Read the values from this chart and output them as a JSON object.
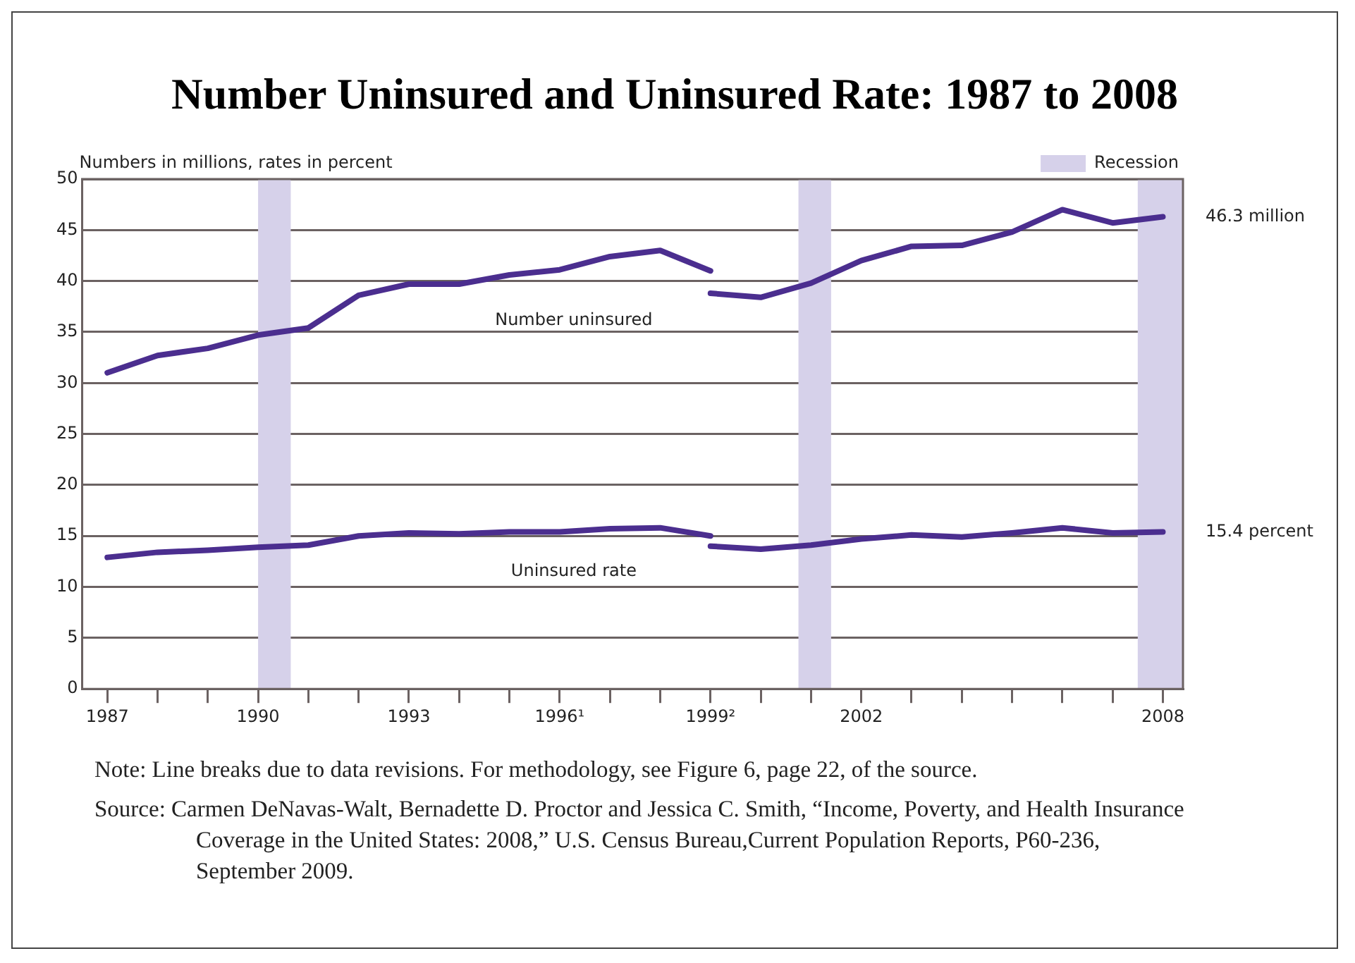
{
  "chart_data": {
    "type": "line",
    "title": "Number Uninsured and Uninsured Rate: 1987 to 2008",
    "ylabel": "Numbers in millions, rates in percent",
    "series": [
      {
        "name": "Number uninsured",
        "color": "#4b2e8f",
        "x": [
          1987,
          1988,
          1989,
          1990,
          1991,
          1992,
          1993,
          1994,
          1995,
          1996,
          1997,
          1998,
          1999
        ],
        "values": [
          31.0,
          32.7,
          33.4,
          34.7,
          35.4,
          38.6,
          39.7,
          39.7,
          40.6,
          41.1,
          42.4,
          43.0,
          41.0
        ]
      },
      {
        "color": "#4b2e8f",
        "x": [
          1999,
          2000,
          2001,
          2002,
          2003,
          2004,
          2005,
          2006,
          2007,
          2008
        ],
        "values": [
          38.8,
          38.4,
          39.8,
          42.0,
          43.4,
          43.5,
          44.8,
          47.0,
          45.7,
          46.3
        ]
      },
      {
        "name": "Uninsured rate",
        "color": "#4b2e8f",
        "x": [
          1987,
          1988,
          1989,
          1990,
          1991,
          1992,
          1993,
          1994,
          1995,
          1996,
          1997,
          1998,
          1999
        ],
        "values": [
          12.9,
          13.4,
          13.6,
          13.9,
          14.1,
          15.0,
          15.3,
          15.2,
          15.4,
          15.4,
          15.7,
          15.8,
          15.0
        ]
      },
      {
        "color": "#4b2e8f",
        "x": [
          1999,
          2000,
          2001,
          2002,
          2003,
          2004,
          2005,
          2006,
          2007,
          2008
        ],
        "values": [
          14.0,
          13.7,
          14.1,
          14.7,
          15.1,
          14.9,
          15.3,
          15.8,
          15.3,
          15.4
        ]
      }
    ],
    "xlim": [
      1986.5,
      2008.4
    ],
    "xticks": [
      1987,
      {
        "value": 1988,
        "label": null
      },
      {
        "value": 1989,
        "label": null
      },
      1990,
      {
        "value": 1991,
        "label": null
      },
      {
        "value": 1992,
        "label": null
      },
      1993,
      {
        "value": 1994,
        "label": null
      },
      {
        "value": 1995,
        "label": null
      },
      {
        "value": 1996,
        "label": "1996¹"
      },
      {
        "value": 1997,
        "label": null
      },
      {
        "value": 1998,
        "label": null
      },
      {
        "value": 1999,
        "label": "1999²"
      },
      {
        "value": 2000,
        "label": null
      },
      {
        "value": 2001,
        "label": null
      },
      2002,
      {
        "value": 2003,
        "label": null
      },
      {
        "value": 2004,
        "label": null
      },
      {
        "value": 2005,
        "label": null
      },
      {
        "value": 2006,
        "label": null
      },
      {
        "value": 2007,
        "label": null
      },
      2008
    ],
    "ylim": [
      0,
      50
    ],
    "yticks": [
      0,
      5,
      10,
      15,
      20,
      25,
      30,
      35,
      40,
      45,
      50
    ],
    "grid": "y",
    "legend": "top right",
    "line_style": "solid",
    "marker": "none",
    "bands": [
      {
        "axis": "x",
        "from": 1990,
        "to": 1990.65,
        "label": "Recession",
        "color": "#d6d1ea"
      },
      {
        "axis": "x",
        "from": 2000.75,
        "to": 2001.4,
        "color": "#d6d1ea"
      },
      {
        "axis": "x",
        "from": 2007.5,
        "to": 2008.4,
        "color": "#d6d1ea"
      }
    ],
    "annotations": [
      "46.3 million",
      "15.4 percent",
      "Note: Line breaks due to data revisions. For methodology, see Figure 6, page 22, of the source.",
      "Source: Carmen DeNavas-Walt, Bernadette D. Proctor and Jessica C. Smith, “Income, Poverty, and Health Insurance Coverage in the United States: 2008,” U.S. Census Bureau,Current Population Reports, P60-236, September 2009."
    ]
  }
}
